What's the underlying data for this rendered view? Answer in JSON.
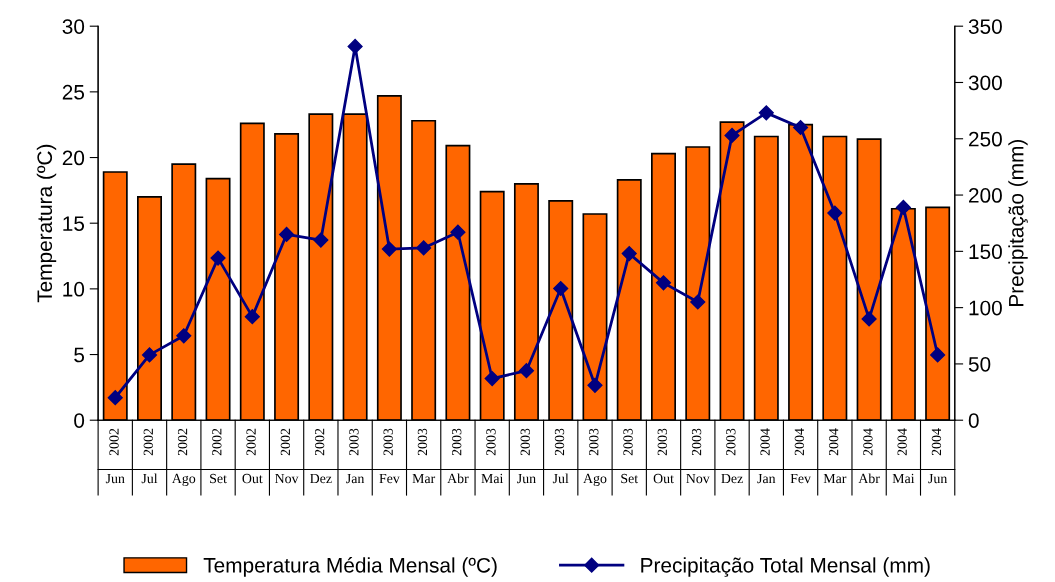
{
  "chart_data": {
    "type": "bar",
    "categories": [
      "2002 Jun",
      "2002 Jul",
      "2002 Ago",
      "2002 Set",
      "2002 Out",
      "2002 Nov",
      "2002 Dez",
      "2003 Jan",
      "2003 Fev",
      "2003 Mar",
      "2003 Abr",
      "2003 Mai",
      "2003 Jun",
      "2003 Jul",
      "2003 Ago",
      "2003 Set",
      "2003 Out",
      "2003 Nov",
      "2003 Dez",
      "2004 Jan",
      "2004 Fev",
      "2004 Mar",
      "2004 Abr",
      "2004 Mai",
      "2004 Jun"
    ],
    "series": [
      {
        "name": "Temperatura Média Mensal (ºC)",
        "color": "#ff6600",
        "values": [
          18.9,
          17.0,
          19.5,
          18.4,
          22.6,
          21.8,
          23.3,
          23.3,
          24.7,
          22.8,
          20.9,
          17.4,
          18.0,
          16.7,
          15.7,
          18.3,
          20.3,
          20.8,
          22.7,
          21.6,
          22.5,
          21.6,
          21.4,
          16.1,
          16.2
        ]
      },
      {
        "name": "Precipitação Total Mensal (mm)",
        "type": "line",
        "axis": "y2",
        "color": "#000080",
        "marker": "diamond",
        "values": [
          20,
          58,
          75,
          144,
          92,
          165,
          160,
          332,
          152,
          153,
          167,
          37,
          44,
          117,
          31,
          148,
          122,
          105,
          253,
          273,
          260,
          184,
          90,
          189,
          58
        ]
      }
    ],
    "ylabel": "Temperatura (ºC)",
    "y2label": "Precipitação (mm)",
    "ylim": [
      0,
      30
    ],
    "yticks": [
      0,
      5,
      10,
      15,
      20,
      25,
      30
    ],
    "y2lim": [
      0,
      350
    ],
    "y2ticks": [
      0,
      50,
      100,
      150,
      200,
      250,
      300,
      350
    ],
    "grid": false,
    "legend": "bottom"
  }
}
